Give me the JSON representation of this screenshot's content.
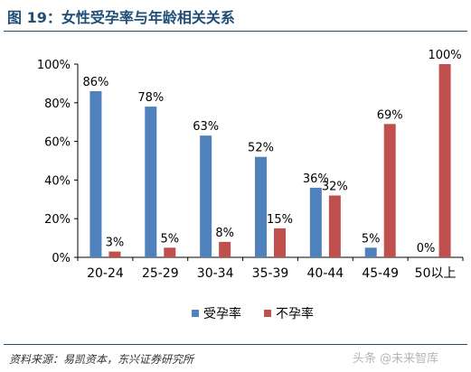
{
  "figure": {
    "title": "图 19：女性受孕率与年龄相关关系",
    "source": "资料来源：易凯资本，东兴证券研究所",
    "watermark": "头条 @未来智库"
  },
  "colors": {
    "title": "#1f4e79",
    "series_pregnant": "#4f81bd",
    "series_not_pregnant": "#c0504d"
  },
  "chart_data": {
    "type": "bar",
    "categories": [
      "20-24",
      "25-29",
      "30-34",
      "35-39",
      "40-44",
      "45-49",
      "50以上"
    ],
    "series": [
      {
        "name": "受孕率",
        "values": [
          86,
          78,
          63,
          52,
          36,
          5,
          0
        ],
        "labels": [
          "86%",
          "78%",
          "63%",
          "52%",
          "36%",
          "5%",
          "0%"
        ]
      },
      {
        "name": "不孕率",
        "values": [
          3,
          5,
          8,
          15,
          32,
          69,
          100
        ],
        "labels": [
          "3%",
          "5%",
          "8%",
          "15%",
          "32%",
          "69%",
          "100%"
        ]
      }
    ],
    "ylim": [
      0,
      100
    ],
    "yticks": [
      "0%",
      "20%",
      "40%",
      "60%",
      "80%",
      "100%"
    ],
    "grid": false,
    "legend_position": "bottom",
    "xlabel": "",
    "ylabel": ""
  }
}
